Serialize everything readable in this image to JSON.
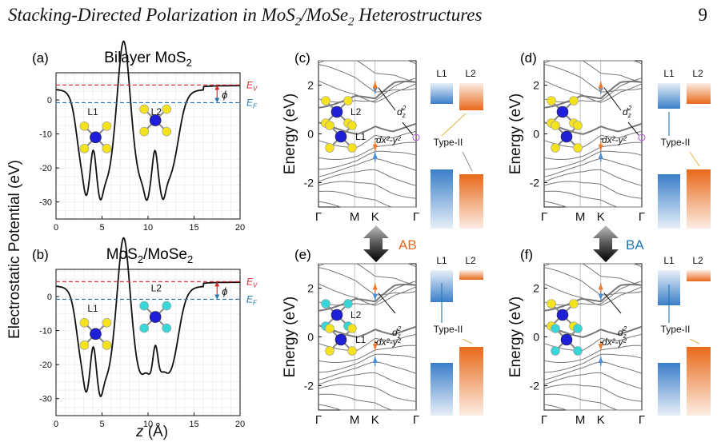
{
  "header": {
    "title_main": "Stacking-Directed Polarization in MoS",
    "title_sub1": "2",
    "title_mid": "/MoSe",
    "title_sub2": "2",
    "title_end": " Heterostructures",
    "page_number": "9"
  },
  "colors": {
    "ev": "#d62728",
    "ef": "#1f77b4",
    "band": "#777777",
    "L1_bar": "#3a7ec8",
    "L2_bar": "#e8691a",
    "mo": "#1f1fd8",
    "s": "#f4e21e",
    "se": "#38d6d6",
    "arrow_orange": "#f07a2a",
    "arrow_blue": "#4a90d9"
  },
  "panels": {
    "a": {
      "tag": "(a)",
      "title": "Bilayer MoS",
      "title_sub": "2",
      "l1": "L1",
      "l2": "L2",
      "ev": "E",
      "ev_sub": "V",
      "ef": "E",
      "ef_sub": "F",
      "phi": "ϕ"
    },
    "b": {
      "tag": "(b)",
      "title_a": "MoS",
      "title_sub1": "2",
      "title_b": "/MoSe",
      "title_sub2": "2",
      "l1": "L1",
      "l2": "L2",
      "ev": "E",
      "ev_sub": "V",
      "ef": "E",
      "ef_sub": "F",
      "phi": "ϕ"
    },
    "c": {
      "tag": "(c)"
    },
    "d": {
      "tag": "(d)"
    },
    "e": {
      "tag": "(e)"
    },
    "f": {
      "tag": "(f)"
    }
  },
  "left_axis": {
    "ylabel": "Electrostatic Potential (eV)",
    "xlabel_var": "z",
    "xlabel_unit": " (Å)",
    "yticks": [
      "0",
      "-10",
      "-20",
      "-30"
    ],
    "xticks": [
      "0",
      "5",
      "10",
      "15",
      "20"
    ]
  },
  "band_axis": {
    "ylabel": "Energy (eV)",
    "yticks": [
      "2",
      "0",
      "-2"
    ],
    "kpoints": [
      "Γ",
      "M",
      "K",
      "Γ"
    ]
  },
  "labels": {
    "L1": "L1",
    "L2": "L2",
    "dz2_base": "d",
    "dz2_sub": "z",
    "dz2_sup": "2",
    "dxy": "dx²-y²",
    "type2": "Type-II",
    "AB": "AB",
    "BA": "BA"
  }
}
